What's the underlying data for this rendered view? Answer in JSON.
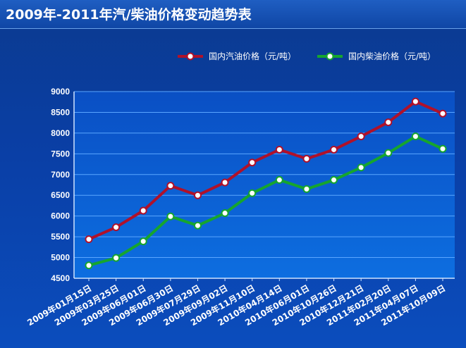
{
  "title": "2009年-2011年汽/柴油价格变动趋势表",
  "colors": {
    "gasoline": "#b0112a",
    "diesel": "#16a52e",
    "grid": "#5aa6ff",
    "plot_bg": "#0c63d6"
  },
  "chart_data": {
    "type": "line",
    "title": "2009年-2011年汽/柴油价格变动趋势表",
    "categories": [
      "2009年01月15日",
      "2009年03月25日",
      "2009年06月01日",
      "2009年06月30日",
      "2009年07月29日",
      "2009年09月02日",
      "2009年11月10日",
      "2010年04月14日",
      "2010年06月01日",
      "2010年10月26日",
      "2010年12月21日",
      "2011年02月20日",
      "2011年04月07日",
      "2011年10月09日"
    ],
    "series": [
      {
        "name": "国内汽油价格（元/吨）",
        "values": [
          5440,
          5730,
          6130,
          6730,
          6500,
          6810,
          7290,
          7600,
          7380,
          7600,
          7920,
          8260,
          8760,
          8470
        ]
      },
      {
        "name": "国内柴油价格（元/吨）",
        "values": [
          4810,
          4990,
          5390,
          5990,
          5770,
          6070,
          6550,
          6870,
          6650,
          6870,
          7170,
          7520,
          7920,
          7620
        ]
      }
    ],
    "yticks": [
      4500,
      5000,
      5500,
      6000,
      6500,
      7000,
      7500,
      8000,
      8500,
      9000
    ],
    "ylim": [
      4500,
      9000
    ],
    "grid": true,
    "legend_position": "top-right"
  }
}
